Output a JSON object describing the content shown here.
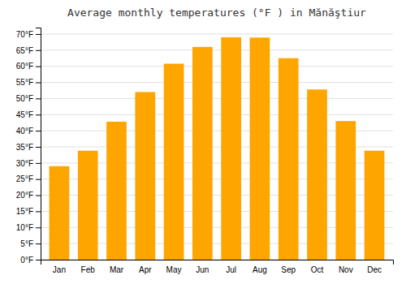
{
  "chart_data": {
    "type": "bar",
    "title": "Average monthly temperatures (°F ) in Mănăştiur",
    "categories": [
      "Jan",
      "Feb",
      "Mar",
      "Apr",
      "May",
      "Jun",
      "Jul",
      "Aug",
      "Sep",
      "Oct",
      "Nov",
      "Dec"
    ],
    "values": [
      29.0,
      33.8,
      42.8,
      52.0,
      60.8,
      66.0,
      69.0,
      68.9,
      62.5,
      52.8,
      43.0,
      33.8
    ],
    "color": "#FFA500",
    "ylim": [
      0,
      72
    ],
    "yticks": [
      {
        "value": 0,
        "label": "0°F"
      },
      {
        "value": 5,
        "label": "5°F"
      },
      {
        "value": 10,
        "label": "10°F"
      },
      {
        "value": 15,
        "label": "15°F"
      },
      {
        "value": 20,
        "label": "20°F"
      },
      {
        "value": 25,
        "label": "25°F"
      },
      {
        "value": 30,
        "label": "30°F"
      },
      {
        "value": 35,
        "label": "35°F"
      },
      {
        "value": 40,
        "label": "40°F"
      },
      {
        "value": 45,
        "label": "45°F"
      },
      {
        "value": 50,
        "label": "50°F"
      },
      {
        "value": 55,
        "label": "55°F"
      },
      {
        "value": 60,
        "label": "60°F"
      },
      {
        "value": 65,
        "label": "65°F"
      },
      {
        "value": 70,
        "label": "70°F"
      }
    ],
    "grid": true
  }
}
